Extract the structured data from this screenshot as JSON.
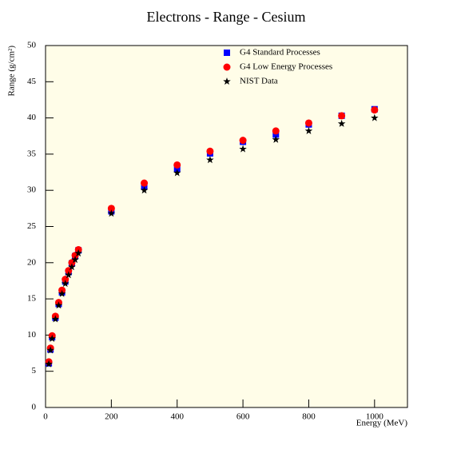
{
  "chart_data": {
    "type": "scatter",
    "title": "Electrons - Range - Cesium",
    "x_label": "Energy (MeV)",
    "y_label": "Range (g/cm²)",
    "x": [
      10,
      15,
      20,
      30,
      40,
      50,
      60,
      70,
      80,
      90,
      100,
      200,
      300,
      400,
      500,
      600,
      700,
      800,
      900,
      1000
    ],
    "series": [
      {
        "name": "G4 Standard Processes",
        "color": "#0000ff",
        "marker": "square",
        "values": [
          6.1,
          8.0,
          9.7,
          12.4,
          14.3,
          15.9,
          17.4,
          18.7,
          19.9,
          20.9,
          21.7,
          27.1,
          30.5,
          33.0,
          35.1,
          36.7,
          37.7,
          39.1,
          40.3,
          41.2
        ]
      },
      {
        "name": "G4 Low Energy Processes",
        "color": "#ff0000",
        "marker": "circle",
        "values": [
          6.3,
          8.2,
          9.9,
          12.6,
          14.5,
          16.2,
          17.7,
          18.9,
          20.0,
          21.0,
          21.8,
          27.5,
          31.0,
          33.5,
          35.4,
          36.9,
          38.2,
          39.3,
          40.3,
          41.1
        ]
      },
      {
        "name": "NIST Data",
        "color": "#000000",
        "marker": "star",
        "values": [
          6.0,
          7.9,
          9.5,
          12.2,
          14.1,
          15.7,
          17.1,
          18.3,
          19.4,
          20.4,
          21.3,
          26.8,
          30.0,
          32.4,
          34.2,
          35.7,
          37.0,
          38.2,
          39.2,
          40.0
        ]
      }
    ],
    "xlim": [
      0,
      1100
    ],
    "xticks": [
      0,
      200,
      400,
      600,
      800,
      1000
    ],
    "ylim": [
      0,
      50
    ],
    "yticks": [
      0,
      5,
      10,
      15,
      20,
      25,
      30,
      35,
      40,
      45,
      50
    ],
    "background": "#fffde8"
  }
}
